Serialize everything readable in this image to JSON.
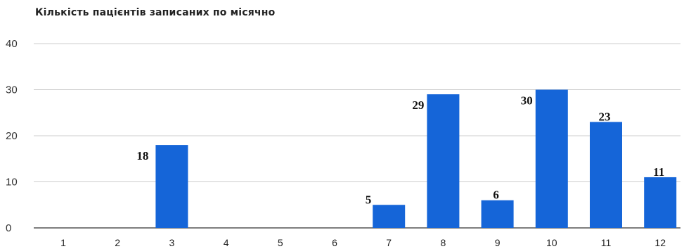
{
  "chart_data": {
    "type": "bar",
    "title": "Кількість пацієнтів записаних по місячно",
    "xlabel": "",
    "ylabel": "",
    "categories": [
      "1",
      "2",
      "3",
      "4",
      "5",
      "6",
      "7",
      "8",
      "9",
      "10",
      "11",
      "12"
    ],
    "values": [
      0,
      0,
      18,
      0,
      0,
      0,
      5,
      29,
      6,
      30,
      23,
      11
    ],
    "data_labels": [
      "",
      "",
      "18",
      "",
      "",
      "",
      "5",
      "29",
      "6",
      "30",
      "23",
      "11"
    ],
    "ylim": [
      0,
      40
    ],
    "yticks": [
      "0",
      "10",
      "20",
      "30",
      "40"
    ],
    "grid": true,
    "legend": "none",
    "bar_color": "#1565d8"
  }
}
